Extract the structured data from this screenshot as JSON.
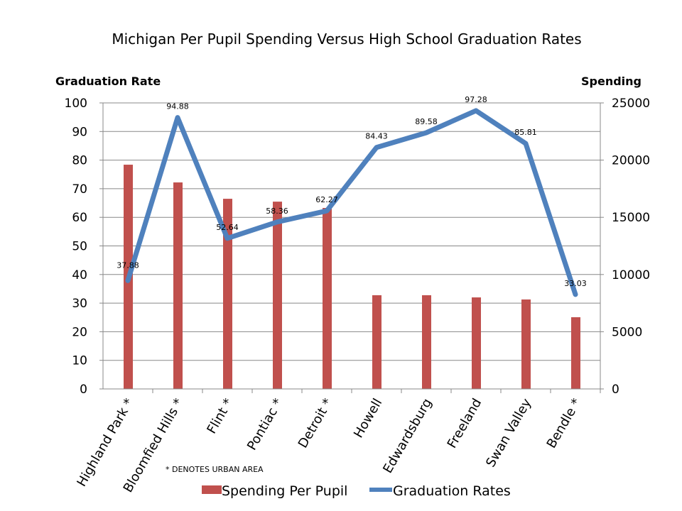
{
  "chart_data": {
    "type": "bar+line",
    "title": "Michigan Per Pupil Spending Versus High School Graduation Rates",
    "ylabel_left": "Graduation Rate",
    "ylabel_right": "Spending",
    "ylim_left": [
      0,
      100
    ],
    "ylim_right": [
      0,
      25000
    ],
    "yticks_left": [
      0,
      10,
      20,
      30,
      40,
      50,
      60,
      70,
      80,
      90,
      100
    ],
    "yticks_right": [
      0,
      5000,
      10000,
      15000,
      20000,
      25000
    ],
    "grid": true,
    "legend": "bottom",
    "categories": [
      "Highland Park *",
      "Bloomfied Hills *",
      "Flint *",
      "Pontiac *",
      "Detroit *",
      "Howell",
      "Edwardsburg",
      "Freeland",
      "Swan Valley",
      "Bendle *"
    ],
    "series": [
      {
        "name": "Spending Per Pupil",
        "type": "bar",
        "axis": "right",
        "color": "#c0504d",
        "values": [
          19600,
          18050,
          16620,
          16370,
          15820,
          8190,
          8190,
          8000,
          7820,
          6270
        ]
      },
      {
        "name": "Graduation Rates",
        "type": "line",
        "axis": "left",
        "color": "#4f81bd",
        "values": [
          37.88,
          94.88,
          52.64,
          58.36,
          62.27,
          84.43,
          89.58,
          97.28,
          85.81,
          33.03
        ],
        "labels": [
          "37.88",
          "94.88",
          "52.64",
          "58.36",
          "62.27",
          "84.43",
          "89.58",
          "97.28",
          "85.81",
          "33.03"
        ]
      }
    ],
    "annotation": "* DENOTES URBAN AREA"
  }
}
